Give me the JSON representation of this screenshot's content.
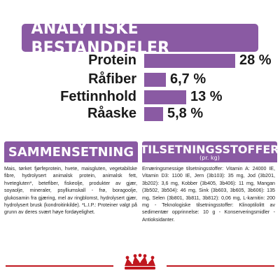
{
  "title": "ANALYTISKE BESTANDDELER",
  "colors": {
    "accent": "#8a5aa3",
    "brand_red": "#c0171f"
  },
  "chart_data": {
    "type": "bar",
    "orientation": "horizontal",
    "categories": [
      "Protein",
      "Råfiber",
      "Fettinnhold",
      "Råaske"
    ],
    "values": [
      28,
      6.7,
      13,
      5.8
    ],
    "value_labels": [
      "28 %",
      "6,7 %",
      "13 %",
      "5,8 %"
    ],
    "xlim": [
      0,
      28
    ]
  },
  "composition": {
    "header": "SAMMENSETNING",
    "text": "Mais, tørket fjørfeprotein, hvete, maisgluten, vegetabilske fibre, hydrolysert animalsk protein, animalsk fett, hvetegluten*, betefiber, fiskeolje, produkter av gjær, soyaolje, mineraler, psylliumskall - frø, boragoolje, glukosamin fra gjæring, mel av ringblomst, hydrolysert gjær, hydrolysert brusk (kondroitinkilde). *L.I.P.: Proteiner valgt på grunn av deres svært høye fordøyelighet."
  },
  "additives": {
    "header": "TILSETNINGSSTOFFER",
    "subheader": "(pr. kg)",
    "text": "Ernæringsmessige tilsetningsstoffer: Vitamin A: 24000 IE, Vitamin D3: 1100 IE, Jern (3b103): 35 mg, Jod (3b201, 3b202): 3,6 mg, Kobber (3b405, 3b406): 11 mg, Mangan (3b502, 3b504): 46 mg, Sink (3b603, 3b605, 3b606): 135 mg, Selen (3b801, 3b811, 3b812): 0,06 mg, L-karnitin: 200 mg - Teknologiske tilsetningsstoffer: Klinoptilolitt av sedimentær opprinnelse: 10 g - Konserveringsmidler - Antioksidanter."
  },
  "logo_icon": "royal-canin-crown-icon"
}
